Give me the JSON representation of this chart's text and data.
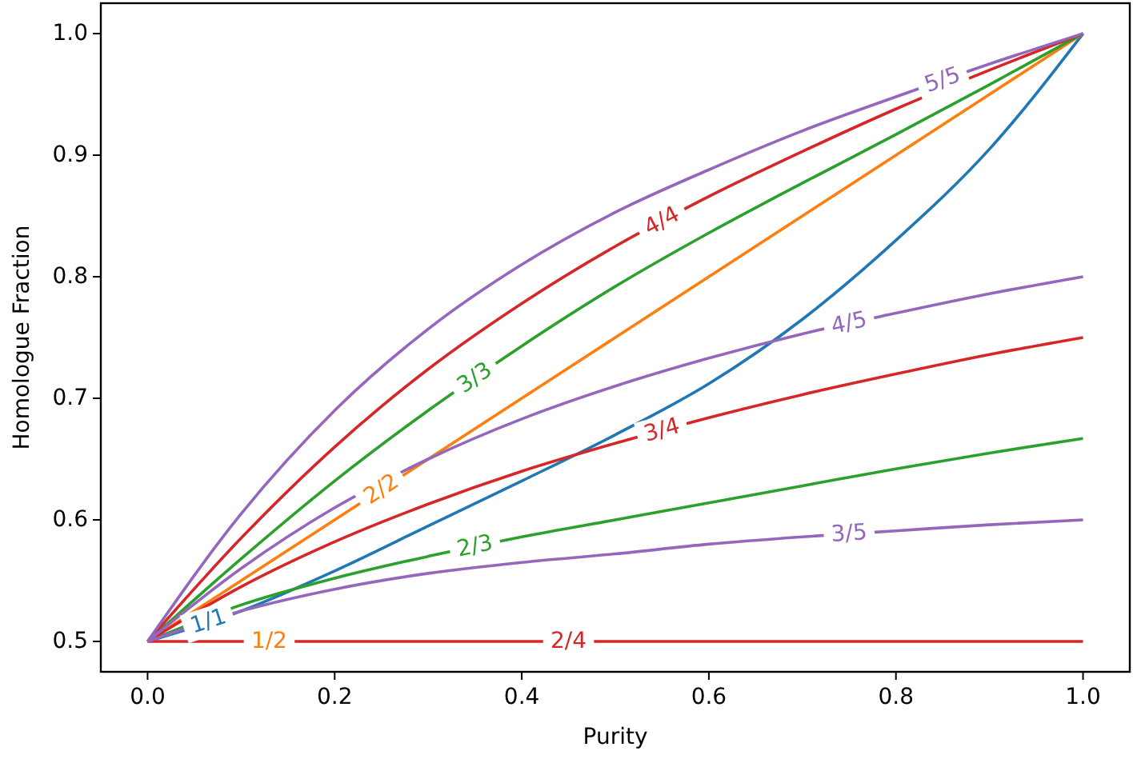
{
  "chart_data": {
    "type": "line",
    "xlabel": "Purity",
    "ylabel": "Homologue Fraction",
    "x": [
      0,
      0.1,
      0.2,
      0.3,
      0.4,
      0.5,
      0.6,
      0.7,
      0.8,
      0.9,
      1.0
    ],
    "xlim": [
      -0.05,
      1.05
    ],
    "ylim": [
      0.475,
      1.025
    ],
    "xticks": [
      {
        "value": 0,
        "label": "0.0"
      },
      0.2,
      0.4,
      0.6,
      0.8,
      {
        "value": 1,
        "label": "1.0"
      }
    ],
    "yticks": [
      0.5,
      0.6,
      0.7,
      0.8,
      0.9,
      {
        "value": 1,
        "label": "1.0"
      }
    ],
    "grid": false,
    "legend": false,
    "marker": "none",
    "line_style": "solid",
    "annotations": [
      {
        "text": "1/2",
        "x": 0.13,
        "y": 0.5
      }
    ],
    "series": [
      {
        "name": "1/1",
        "color": "#1f77b4",
        "values": [
          0.5,
          0.525,
          0.558,
          0.595,
          0.632,
          0.67,
          0.712,
          0.765,
          0.83,
          0.905,
          1.0
        ]
      },
      {
        "name": "2/2",
        "color": "#ff7f0e",
        "values": [
          0.5,
          0.55,
          0.6,
          0.65,
          0.7,
          0.75,
          0.8,
          0.85,
          0.9,
          0.95,
          1.0
        ]
      },
      {
        "name": "2/3",
        "color": "#2ca02c",
        "values": [
          0.5,
          0.53,
          0.552,
          0.57,
          0.586,
          0.6,
          0.614,
          0.628,
          0.642,
          0.655,
          0.667
        ]
      },
      {
        "name": "3/3",
        "color": "#2ca02c",
        "values": [
          0.5,
          0.568,
          0.632,
          0.69,
          0.743,
          0.792,
          0.836,
          0.877,
          0.917,
          0.958,
          1.0
        ]
      },
      {
        "name": "2/4",
        "color": "#d62728",
        "values": [
          0.5,
          0.5,
          0.5,
          0.5,
          0.5,
          0.5,
          0.5,
          0.5,
          0.5,
          0.5,
          0.5
        ]
      },
      {
        "name": "3/4",
        "color": "#d62728",
        "values": [
          0.5,
          0.545,
          0.582,
          0.613,
          0.64,
          0.663,
          0.684,
          0.703,
          0.72,
          0.736,
          0.75
        ]
      },
      {
        "name": "4/4",
        "color": "#d62728",
        "values": [
          0.5,
          0.585,
          0.66,
          0.724,
          0.778,
          0.825,
          0.866,
          0.903,
          0.938,
          0.97,
          1.0
        ]
      },
      {
        "name": "3/5",
        "color": "#9467bd",
        "values": [
          0.5,
          0.525,
          0.543,
          0.556,
          0.565,
          0.572,
          0.58,
          0.586,
          0.591,
          0.596,
          0.6
        ]
      },
      {
        "name": "4/5",
        "color": "#9467bd",
        "values": [
          0.5,
          0.56,
          0.61,
          0.65,
          0.683,
          0.71,
          0.733,
          0.753,
          0.77,
          0.786,
          0.8
        ]
      },
      {
        "name": "5/5",
        "color": "#9467bd",
        "values": [
          0.5,
          0.605,
          0.69,
          0.757,
          0.81,
          0.853,
          0.888,
          0.92,
          0.948,
          0.975,
          1.0
        ]
      }
    ]
  }
}
